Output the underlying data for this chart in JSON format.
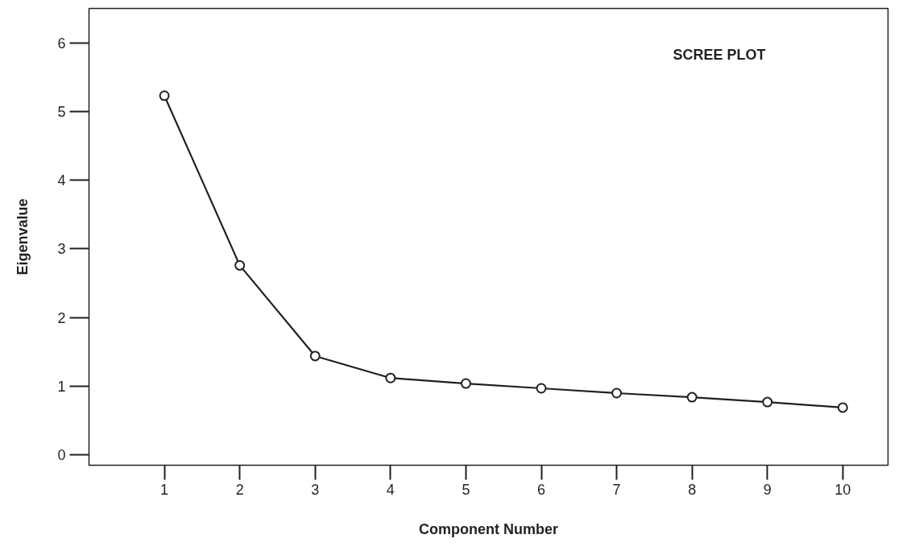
{
  "chart_data": {
    "type": "line",
    "title": "SCREE PLOT",
    "xlabel": "Component Number",
    "ylabel": "Eigenvalue",
    "x": [
      1,
      2,
      3,
      4,
      5,
      6,
      7,
      8,
      9,
      10
    ],
    "series": [
      {
        "color": "#231f20",
        "values": [
          5.23,
          2.76,
          1.44,
          1.12,
          1.04,
          0.97,
          0.9,
          0.84,
          0.77,
          0.69
        ]
      }
    ],
    "xlim": [
      0,
      10.6
    ],
    "xticks": [
      1,
      2,
      3,
      4,
      5,
      6,
      7,
      8,
      9,
      10
    ],
    "ylim": [
      -0.15,
      6.5
    ],
    "yticks": [
      0,
      1,
      2,
      3,
      4,
      5,
      6
    ],
    "marker": "circle",
    "line_style": "solid",
    "grid": false
  }
}
